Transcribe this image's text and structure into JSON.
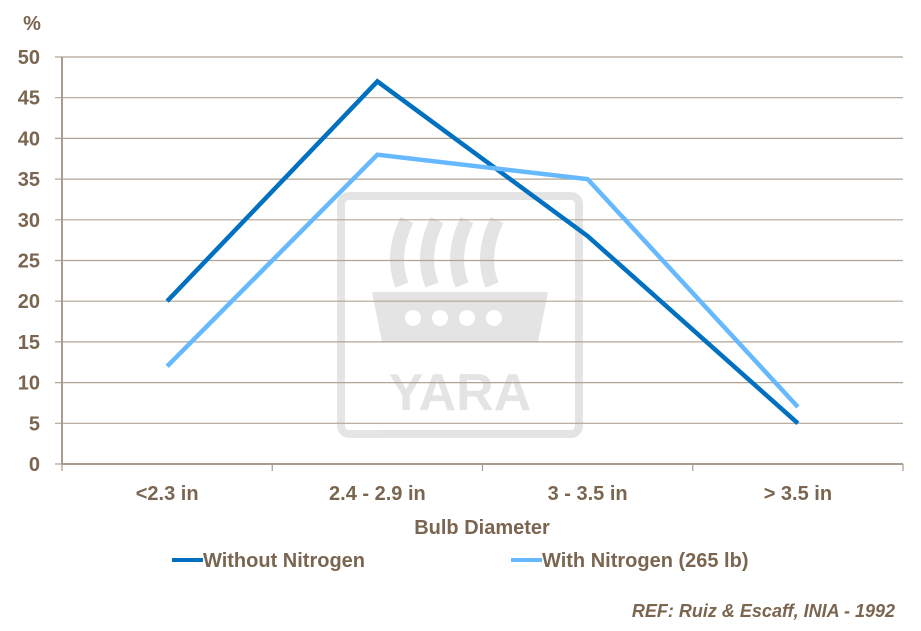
{
  "chart_data": {
    "type": "line",
    "ylabel": "%",
    "xlabel": "Bulb Diameter",
    "categories": [
      "<2.3 in",
      "2.4 - 2.9 in",
      "3 - 3.5 in",
      "> 3.5 in"
    ],
    "ylim": [
      0,
      50
    ],
    "yticks": [
      0,
      5,
      10,
      15,
      20,
      25,
      30,
      35,
      40,
      45,
      50
    ],
    "grid": true,
    "legend_position": "bottom",
    "series": [
      {
        "name": "Without Nitrogen",
        "values": [
          20,
          47,
          28,
          5
        ],
        "color": "#0070C0"
      },
      {
        "name": "With Nitrogen (265 lb)",
        "values": [
          12,
          38,
          35,
          7
        ],
        "color": "#66B8FF"
      }
    ],
    "annotation": "REF: Ruiz & Escaff, INIA - 1992",
    "watermark_logo": "YARA"
  }
}
